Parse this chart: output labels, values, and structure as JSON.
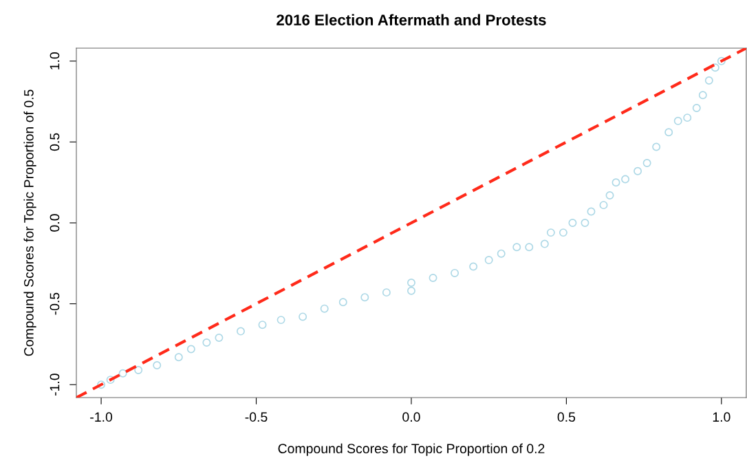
{
  "chart_data": {
    "type": "scatter",
    "title": "2016 Election Aftermath and Protests",
    "xlabel": "Compound Scores for Topic Proportion of 0.2",
    "ylabel": "Compound Scores for Topic Proportion of 0.5",
    "xlim": [
      -1.08,
      1.08
    ],
    "ylim": [
      -1.08,
      1.08
    ],
    "xticks": [
      {
        "value": -1,
        "label": "-1.0"
      },
      {
        "value": -0.5,
        "label": "-0.5"
      },
      {
        "value": 0,
        "label": "0.0"
      },
      {
        "value": 0.5,
        "label": "0.5"
      },
      {
        "value": 1,
        "label": "1.0"
      }
    ],
    "yticks": [
      {
        "value": -1,
        "label": "-1.0"
      },
      {
        "value": -0.5,
        "label": "-0.5"
      },
      {
        "value": 0,
        "label": "0.0"
      },
      {
        "value": 0.5,
        "label": "0.5"
      },
      {
        "value": 1,
        "label": "1.0"
      }
    ],
    "grid": false,
    "legend": false,
    "series": [
      {
        "color": "#add8e6",
        "marker": "circle",
        "x": [
          -1,
          -0.97,
          -0.93,
          -0.88,
          -0.82,
          -0.75,
          -0.71,
          -0.66,
          -0.62,
          -0.55,
          -0.48,
          -0.42,
          -0.35,
          -0.28,
          -0.22,
          -0.15,
          -0.08,
          0,
          0,
          0.07,
          0.14,
          0.2,
          0.25,
          0.29,
          0.34,
          0.38,
          0.43,
          0.45,
          0.49,
          0.52,
          0.56,
          0.58,
          0.62,
          0.64,
          0.66,
          0.69,
          0.73,
          0.76,
          0.79,
          0.83,
          0.86,
          0.89,
          0.92,
          0.94,
          0.96,
          0.98,
          1
        ],
        "values": [
          -1,
          -0.97,
          -0.93,
          -0.91,
          -0.88,
          -0.83,
          -0.78,
          -0.74,
          -0.71,
          -0.67,
          -0.63,
          -0.6,
          -0.58,
          -0.53,
          -0.49,
          -0.46,
          -0.43,
          -0.42,
          -0.37,
          -0.34,
          -0.31,
          -0.27,
          -0.23,
          -0.19,
          -0.15,
          -0.15,
          -0.13,
          -0.06,
          -0.06,
          0,
          0,
          0.07,
          0.11,
          0.17,
          0.25,
          0.27,
          0.32,
          0.37,
          0.47,
          0.56,
          0.63,
          0.65,
          0.71,
          0.79,
          0.88,
          0.96,
          1
        ]
      },
      {
        "type": "line",
        "color": "#ff2a1a",
        "line_style": "dashed",
        "x": [
          -1.08,
          1.08
        ],
        "values": [
          -1.08,
          1.08
        ]
      }
    ]
  }
}
